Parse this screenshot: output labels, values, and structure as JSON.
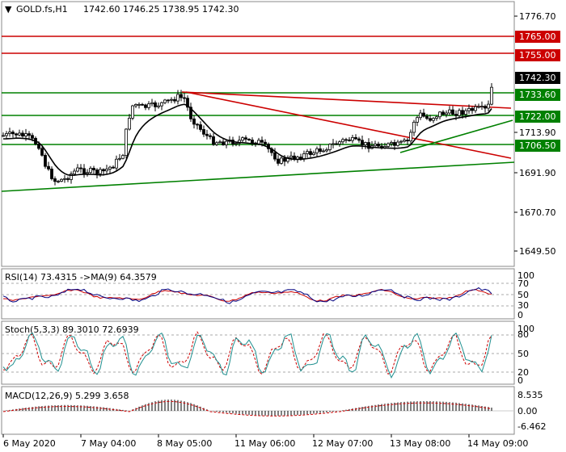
{
  "main": {
    "header": {
      "symbol_label": "GOLD.fs,H1",
      "ohlc": "1742.60 1746.25 1738.95 1742.30"
    },
    "axis_labels": [
      "1776.70",
      "1691.90",
      "1670.70",
      "1649.50"
    ],
    "price_tags": [
      {
        "id": "resistance-2",
        "label": "1765.00",
        "color": "#cc0000"
      },
      {
        "id": "resistance-1",
        "label": "1755.00",
        "color": "#cc0000"
      },
      {
        "id": "current-price",
        "label": "1742.30",
        "color": "#000000"
      },
      {
        "id": "level-3",
        "label": "1733.60",
        "color": "#008000"
      },
      {
        "id": "level-2",
        "label": "1722.00",
        "color": "#008000"
      },
      {
        "id": "level-1",
        "label": "1706.50",
        "color": "#008000"
      }
    ],
    "extra_axis_label": "1713.90"
  },
  "rsi": {
    "title": "RSI(14) 73.4315  ->MA(9) 64.3579",
    "axis_labels": [
      "100",
      "70",
      "50",
      "30",
      "0"
    ]
  },
  "stoch": {
    "title": "Stoch(5,3,3) 89.3010 72.6939",
    "axis_labels": [
      "100",
      "80",
      "50",
      "20",
      "0"
    ]
  },
  "macd": {
    "title": "MACD(12,26,9) 5.299 3.658",
    "axis_labels": [
      "8.535",
      "0.00",
      "-6.462"
    ]
  },
  "time_axis": [
    "6 May 2020",
    "7 May 04:00",
    "8 May 05:00",
    "11 May 06:00",
    "12 May 07:00",
    "13 May 08:00",
    "14 May 09:00"
  ],
  "colors": {
    "support": "#008000",
    "resistance": "#cc0000",
    "price": "#000000",
    "rsi_line": "#000080",
    "rsi_ma": "#cc0000",
    "stoch_main": "#1f8f8f",
    "stoch_signal": "#cc0000"
  }
}
